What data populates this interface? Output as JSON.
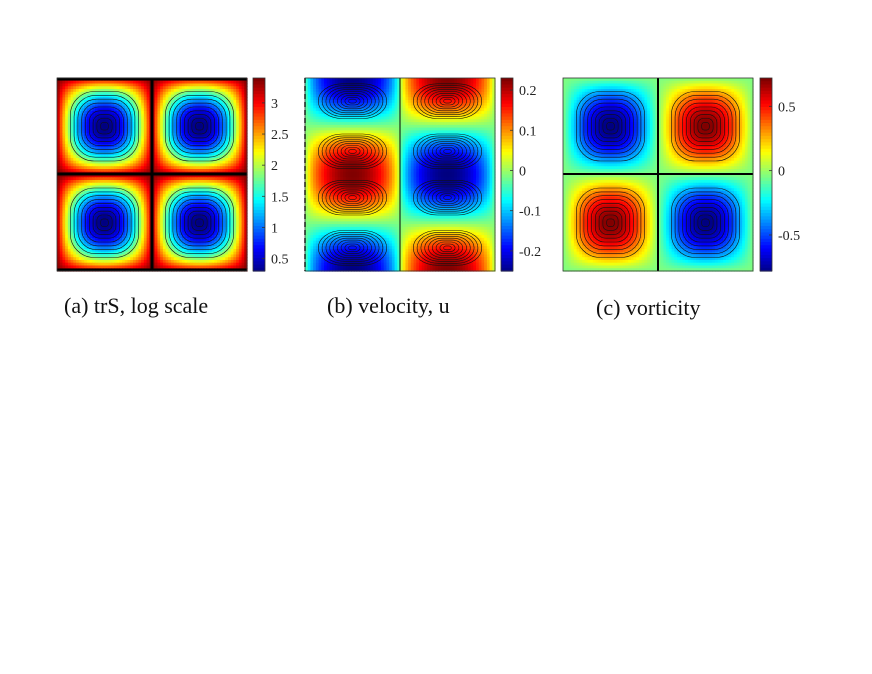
{
  "chart_data": [
    {
      "type": "heatmap",
      "caption": "(a) trS, log scale",
      "pattern": "trS",
      "colorbar": {
        "min": 0.3,
        "max": 3.4,
        "ticks": [
          0.5,
          1,
          1.5,
          2,
          2.5,
          3
        ],
        "tick_labels": [
          "0.5",
          "1",
          "1.5",
          "2",
          "2.5",
          "3"
        ]
      }
    },
    {
      "type": "heatmap",
      "caption": "(b) velocity, u",
      "pattern": "velocity",
      "colorbar": {
        "min": -0.25,
        "max": 0.23,
        "ticks": [
          -0.2,
          -0.1,
          0,
          0.1,
          0.2
        ],
        "tick_labels": [
          "-0.2",
          "-0.1",
          "0",
          "0.1",
          "0.2"
        ]
      }
    },
    {
      "type": "heatmap",
      "caption": "(c) vorticity",
      "pattern": "vorticity",
      "colorbar": {
        "min": -0.78,
        "max": 0.72,
        "ticks": [
          -0.5,
          0,
          0.5
        ],
        "tick_labels": [
          "-0.5",
          "0",
          "0.5"
        ]
      }
    }
  ]
}
